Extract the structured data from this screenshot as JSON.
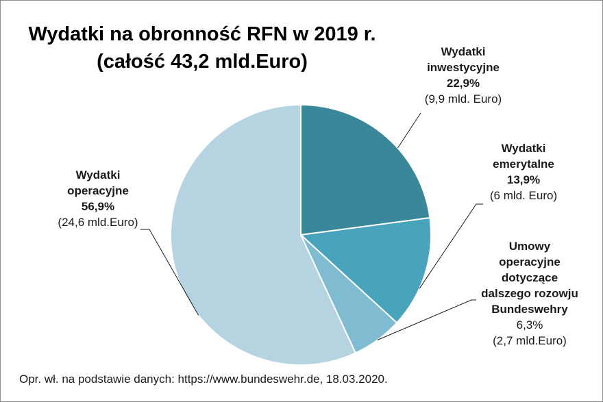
{
  "chart_data": {
    "type": "pie",
    "title_line1": "Wydatki na obronność RFN w 2019 r.",
    "title_line2": "(całość 43,2 mld.Euro)",
    "slices": [
      {
        "name_line1": "Wydatki",
        "name_line2": "inwestycyjne",
        "value": 22.9,
        "percent": "22,9%",
        "amount": "(9,9 mld. Euro)",
        "color": "#3a8799"
      },
      {
        "name_line1": "Wydatki",
        "name_line2": "emerytalne",
        "value": 13.9,
        "percent": "13,9%",
        "amount": "(6 mld. Euro)",
        "color": "#48a4bd"
      },
      {
        "name_lines": [
          "Umowy",
          "operacyjne",
          "dotyczące",
          "dalszego rozowju",
          "Bundeswehry"
        ],
        "value": 6.3,
        "percent": "6,3%",
        "amount": "(2,7 mld.Euro)",
        "color": "#7fbcd2"
      },
      {
        "name_line1": "Wydatki",
        "name_line2": "operacyjne",
        "value": 56.9,
        "percent": "56,9%",
        "amount": "(24,6 mld.Euro)",
        "color": "#b5d3e0"
      }
    ]
  },
  "footer": {
    "source_note": "Opr. wł. na podstawie  danych: https://www.bundeswehr.de, 18.03.2020."
  }
}
